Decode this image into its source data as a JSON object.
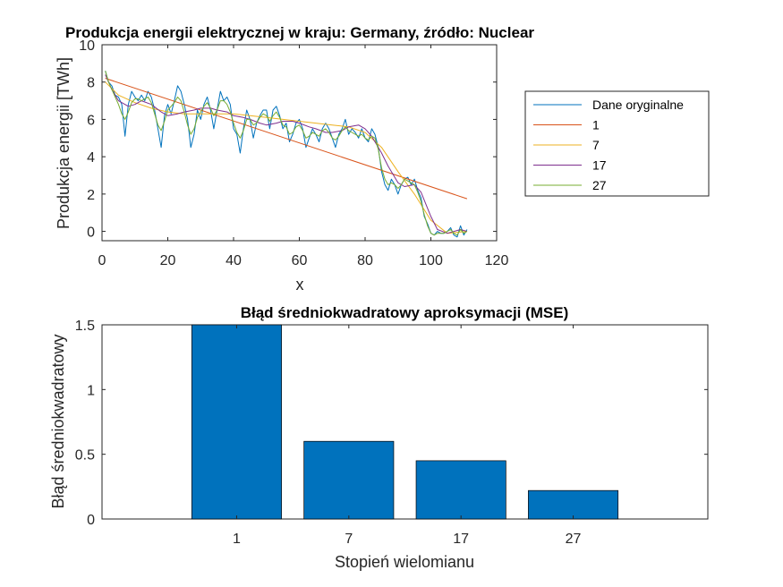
{
  "chart_data": [
    {
      "type": "line",
      "title": "Produkcja energii elektrycznej w kraju: Germany, źródło: Nuclear",
      "xlabel": "x",
      "ylabel": "Produkcja energii [TWh]",
      "xlim": [
        0,
        120
      ],
      "ylim": [
        -0.5,
        10
      ],
      "xticks": [
        0,
        20,
        40,
        60,
        80,
        100,
        120
      ],
      "yticks": [
        0,
        2,
        4,
        6,
        8,
        10
      ],
      "grid": false,
      "legend_position": "right",
      "series": [
        {
          "name": "Dane oryginalne",
          "color": "#0072BD",
          "x": [
            1,
            2,
            3,
            4,
            5,
            6,
            7,
            8,
            9,
            10,
            11,
            12,
            13,
            14,
            15,
            16,
            17,
            18,
            19,
            20,
            21,
            22,
            23,
            24,
            25,
            26,
            27,
            28,
            29,
            30,
            31,
            32,
            33,
            34,
            35,
            36,
            37,
            38,
            39,
            40,
            41,
            42,
            43,
            44,
            45,
            46,
            47,
            48,
            49,
            50,
            51,
            52,
            53,
            54,
            55,
            56,
            57,
            58,
            59,
            60,
            61,
            62,
            63,
            64,
            65,
            66,
            67,
            68,
            69,
            70,
            71,
            72,
            73,
            74,
            75,
            76,
            77,
            78,
            79,
            80,
            81,
            82,
            83,
            84,
            85,
            86,
            87,
            88,
            89,
            90,
            91,
            92,
            93,
            94,
            95,
            96,
            97,
            98,
            99,
            100,
            101,
            102,
            103,
            104,
            105,
            106,
            107,
            108,
            109,
            110,
            111
          ],
          "y": [
            8.6,
            8.0,
            7.8,
            7.3,
            7.2,
            6.8,
            5.1,
            6.8,
            7.5,
            7.2,
            7.0,
            7.3,
            7.0,
            7.5,
            7.2,
            6.5,
            5.5,
            4.5,
            6.2,
            6.8,
            6.3,
            7.0,
            7.8,
            7.5,
            6.8,
            6.0,
            4.5,
            5.2,
            6.5,
            6.0,
            6.8,
            7.2,
            6.5,
            5.5,
            6.5,
            7.5,
            7.0,
            7.2,
            6.8,
            5.5,
            5.2,
            4.2,
            5.5,
            6.5,
            6.0,
            5.0,
            5.8,
            6.2,
            6.5,
            6.5,
            5.5,
            6.5,
            6.7,
            6.2,
            5.5,
            5.8,
            4.8,
            5.2,
            5.8,
            6.0,
            5.5,
            4.5,
            5.0,
            5.5,
            5.2,
            4.8,
            5.5,
            5.8,
            5.5,
            5.0,
            4.5,
            5.2,
            5.5,
            6.0,
            5.2,
            5.5,
            5.3,
            5.0,
            5.5,
            5.0,
            4.8,
            5.5,
            5.2,
            4.5,
            3.2,
            2.5,
            2.2,
            2.8,
            2.5,
            2.0,
            2.5,
            2.8,
            2.9,
            2.5,
            2.8,
            2.2,
            1.8,
            0.8,
            0.4,
            -0.1,
            -0.2,
            0.0,
            -0.1,
            -0.1,
            0.0,
            0.2,
            -0.2,
            -0.3,
            0.3,
            -0.2,
            0.1
          ]
        },
        {
          "name": "1",
          "color": "#D95319",
          "x": [
            1,
            111
          ],
          "y": [
            8.2,
            1.75
          ]
        },
        {
          "name": "7",
          "color": "#EDB120",
          "x": [
            1,
            5,
            10,
            15,
            20,
            25,
            30,
            35,
            40,
            45,
            50,
            55,
            60,
            65,
            70,
            75,
            80,
            85,
            90,
            95,
            100,
            105,
            111
          ],
          "y": [
            8.0,
            7.3,
            6.9,
            6.6,
            6.4,
            6.3,
            6.3,
            6.3,
            6.3,
            6.2,
            6.1,
            6.0,
            5.9,
            5.8,
            5.7,
            5.6,
            5.3,
            4.5,
            3.2,
            2.0,
            0.6,
            -0.1,
            0.0
          ]
        },
        {
          "name": "17",
          "color": "#7E2F8E",
          "x": [
            1,
            3,
            5,
            8,
            10,
            12,
            15,
            18,
            20,
            23,
            25,
            28,
            30,
            33,
            35,
            38,
            40,
            43,
            45,
            48,
            50,
            53,
            55,
            58,
            60,
            63,
            65,
            68,
            70,
            73,
            75,
            78,
            80,
            82,
            85,
            87,
            90,
            92,
            95,
            97,
            100,
            102,
            105,
            107,
            109,
            111
          ],
          "y": [
            8.4,
            7.6,
            7.0,
            6.7,
            6.8,
            7.0,
            6.8,
            6.4,
            6.2,
            6.3,
            6.4,
            6.5,
            6.6,
            6.6,
            6.5,
            6.4,
            6.2,
            6.1,
            6.0,
            5.8,
            5.7,
            5.8,
            5.9,
            5.9,
            5.8,
            5.6,
            5.5,
            5.3,
            5.3,
            5.4,
            5.6,
            5.7,
            5.5,
            5.1,
            4.2,
            3.5,
            2.6,
            2.4,
            2.5,
            2.1,
            0.8,
            0.1,
            -0.1,
            0.0,
            0.1,
            0.0
          ]
        },
        {
          "name": "27",
          "color": "#77AC30",
          "x": [
            1,
            2,
            3,
            4,
            5,
            6,
            7,
            8,
            9,
            10,
            11,
            12,
            13,
            14,
            15,
            16,
            17,
            18,
            19,
            20,
            21,
            22,
            23,
            24,
            25,
            26,
            27,
            28,
            29,
            30,
            31,
            32,
            33,
            34,
            35,
            36,
            37,
            38,
            39,
            40,
            41,
            42,
            43,
            44,
            45,
            46,
            47,
            48,
            49,
            50,
            51,
            52,
            53,
            54,
            55,
            56,
            57,
            58,
            59,
            60,
            61,
            62,
            63,
            64,
            65,
            66,
            67,
            68,
            69,
            70,
            71,
            72,
            73,
            74,
            75,
            76,
            77,
            78,
            79,
            80,
            81,
            82,
            83,
            84,
            85,
            86,
            87,
            88,
            89,
            90,
            91,
            92,
            93,
            94,
            95,
            96,
            97,
            98,
            99,
            100,
            101,
            102,
            103,
            104,
            105,
            106,
            107,
            108,
            109,
            110,
            111
          ],
          "y": [
            8.6,
            8.0,
            7.6,
            7.2,
            6.8,
            6.3,
            6.0,
            6.4,
            6.9,
            7.1,
            7.1,
            7.0,
            7.1,
            7.2,
            6.9,
            6.3,
            5.7,
            5.4,
            5.9,
            6.5,
            6.7,
            6.9,
            7.2,
            7.0,
            6.4,
            5.7,
            5.2,
            5.5,
            6.1,
            6.4,
            6.7,
            6.9,
            6.6,
            6.2,
            6.5,
            7.0,
            7.0,
            6.8,
            6.4,
            5.8,
            5.3,
            5.0,
            5.4,
            6.0,
            6.0,
            5.7,
            5.8,
            6.1,
            6.3,
            6.2,
            5.9,
            6.2,
            6.4,
            6.1,
            5.7,
            5.6,
            5.2,
            5.3,
            5.6,
            5.7,
            5.4,
            5.0,
            5.1,
            5.3,
            5.2,
            5.1,
            5.4,
            5.5,
            5.3,
            5.0,
            4.9,
            5.1,
            5.4,
            5.6,
            5.4,
            5.3,
            5.2,
            5.1,
            5.2,
            5.0,
            4.9,
            5.1,
            5.0,
            4.4,
            3.4,
            2.8,
            2.5,
            2.6,
            2.5,
            2.3,
            2.5,
            2.8,
            2.7,
            2.6,
            2.5,
            2.1,
            1.6,
            0.9,
            0.3,
            -0.1,
            -0.2,
            -0.1,
            -0.1,
            -0.1,
            0.0,
            0.1,
            -0.1,
            -0.2,
            0.1,
            -0.1,
            0.0
          ]
        }
      ]
    },
    {
      "type": "bar",
      "title": "Błąd średniokwadratowy aproksymacji (MSE)",
      "xlabel": "Stopień wielomianu",
      "ylabel": "Błąd średniokwadratowy",
      "categories": [
        "1",
        "7",
        "17",
        "27"
      ],
      "values": [
        1.55,
        0.6,
        0.45,
        0.22
      ],
      "ylim": [
        0,
        1.5
      ],
      "yticks": [
        0,
        0.5,
        1,
        1.5
      ],
      "color": "#0072BD",
      "grid": false
    }
  ]
}
